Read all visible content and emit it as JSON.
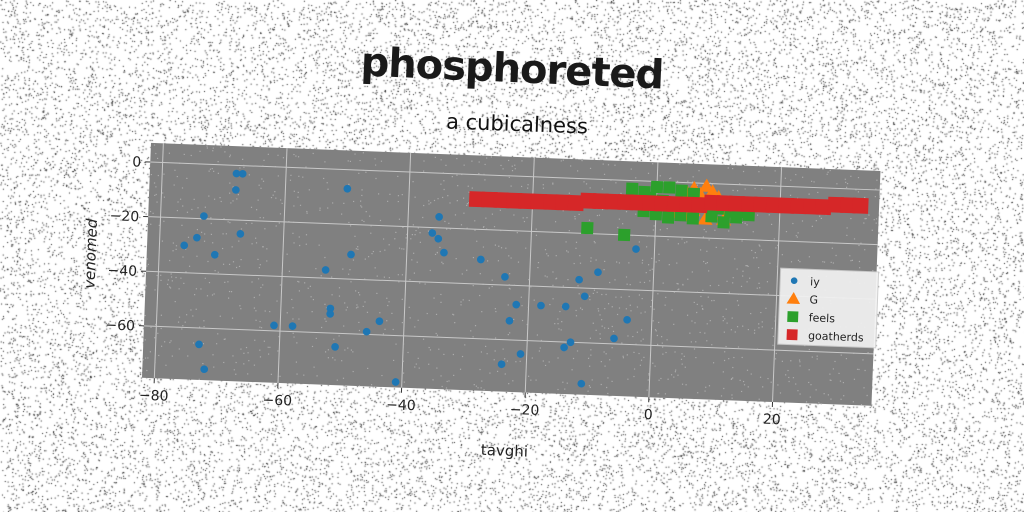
{
  "chart_data": {
    "type": "scatter",
    "title": "phosphoreted",
    "subtitle": "a cubicalness",
    "xlabel": "tavghi",
    "ylabel": "venomed",
    "xlim": [
      -82,
      36
    ],
    "ylim": [
      -79,
      7
    ],
    "xticks": [
      -80,
      -60,
      -40,
      -20,
      0,
      20
    ],
    "yticks": [
      0,
      -20,
      -40,
      -60
    ],
    "grid": true,
    "legend_position": "right",
    "series": [
      {
        "name": "iy",
        "marker": "circle",
        "color": "#1f77b4",
        "points": [
          [
            -68,
            -3
          ],
          [
            -67,
            -3
          ],
          [
            -68,
            -9
          ],
          [
            -73,
            -19
          ],
          [
            -67,
            -25
          ],
          [
            -74,
            -27
          ],
          [
            -76,
            -30
          ],
          [
            -71,
            -33
          ],
          [
            -50,
            -7
          ],
          [
            -49,
            -31
          ],
          [
            -53,
            -37
          ],
          [
            -52,
            -51
          ],
          [
            -52,
            -53
          ],
          [
            -61,
            -58
          ],
          [
            -58,
            -58
          ],
          [
            -51,
            -65
          ],
          [
            -73,
            -66
          ],
          [
            -72,
            -75
          ],
          [
            -44,
            -55
          ],
          [
            -46,
            -59
          ],
          [
            -41,
            -77
          ],
          [
            -35,
            -16
          ],
          [
            -36,
            -22
          ],
          [
            -35,
            -24
          ],
          [
            -34,
            -29
          ],
          [
            -28,
            -31
          ],
          [
            -24,
            -37
          ],
          [
            -22,
            -47
          ],
          [
            -23,
            -53
          ],
          [
            -21,
            -65
          ],
          [
            -24,
            -69
          ],
          [
            -18,
            -47
          ],
          [
            -14,
            -47
          ],
          [
            -12,
            -37
          ],
          [
            -11,
            -43
          ],
          [
            -9,
            -34
          ],
          [
            -14,
            -62
          ],
          [
            -13,
            -60
          ],
          [
            -11,
            -75
          ],
          [
            -6,
            -58
          ],
          [
            -4,
            -51
          ],
          [
            -3,
            -25
          ]
        ]
      },
      {
        "name": "G",
        "marker": "triangle",
        "color": "#ff7f0e",
        "points": [
          [
            6,
            -2
          ],
          [
            8,
            -1
          ],
          [
            9,
            -3
          ],
          [
            5,
            -4
          ],
          [
            10,
            -5
          ],
          [
            7,
            -6
          ],
          [
            11,
            -7
          ],
          [
            4,
            -8
          ],
          [
            12,
            -9
          ],
          [
            6,
            -10
          ],
          [
            9,
            -11
          ],
          [
            3,
            -11
          ],
          [
            8,
            -13
          ],
          [
            11,
            -13
          ],
          [
            5,
            -12
          ],
          [
            7,
            -4
          ]
        ]
      },
      {
        "name": "feels",
        "marker": "square",
        "color": "#2ca02c",
        "points": [
          [
            -4,
            -3
          ],
          [
            -2,
            -4
          ],
          [
            0,
            -2
          ],
          [
            2,
            -2
          ],
          [
            4,
            -3
          ],
          [
            6,
            -4
          ],
          [
            -1,
            -6
          ],
          [
            1,
            -7
          ],
          [
            3,
            -8
          ],
          [
            -3,
            -8
          ],
          [
            8,
            -8
          ],
          [
            10,
            -9
          ],
          [
            12,
            -10
          ],
          [
            14,
            -10
          ],
          [
            -2,
            -11
          ],
          [
            0,
            -12
          ],
          [
            2,
            -13
          ],
          [
            4,
            -12
          ],
          [
            6,
            -13
          ],
          [
            9,
            -12
          ],
          [
            13,
            -12
          ],
          [
            11,
            -14
          ],
          [
            15,
            -11
          ],
          [
            -11,
            -18
          ],
          [
            -5,
            -20
          ]
        ]
      },
      {
        "name": "goatherds",
        "marker": "square",
        "color": "#d62728",
        "points": [
          [
            -29,
            -9
          ],
          [
            -27,
            -9
          ],
          [
            -25,
            -9
          ],
          [
            -23,
            -9
          ],
          [
            -21,
            -9
          ],
          [
            -19,
            -9
          ],
          [
            -17,
            -9
          ],
          [
            -15,
            -9
          ],
          [
            -13,
            -9
          ],
          [
            -11,
            -8
          ],
          [
            -9,
            -8
          ],
          [
            -7,
            -8
          ],
          [
            -5,
            -8
          ],
          [
            -3,
            -8
          ],
          [
            -1,
            -8
          ],
          [
            1,
            -8
          ],
          [
            3,
            -8
          ],
          [
            5,
            -8
          ],
          [
            7,
            -8
          ],
          [
            9,
            -7
          ],
          [
            11,
            -7
          ],
          [
            13,
            -7
          ],
          [
            15,
            -7
          ],
          [
            17,
            -7
          ],
          [
            19,
            -7
          ],
          [
            21,
            -7
          ],
          [
            23,
            -7
          ],
          [
            25,
            -7
          ],
          [
            27,
            -7
          ],
          [
            29,
            -6
          ],
          [
            31,
            -6
          ],
          [
            33,
            -6
          ]
        ]
      }
    ]
  }
}
